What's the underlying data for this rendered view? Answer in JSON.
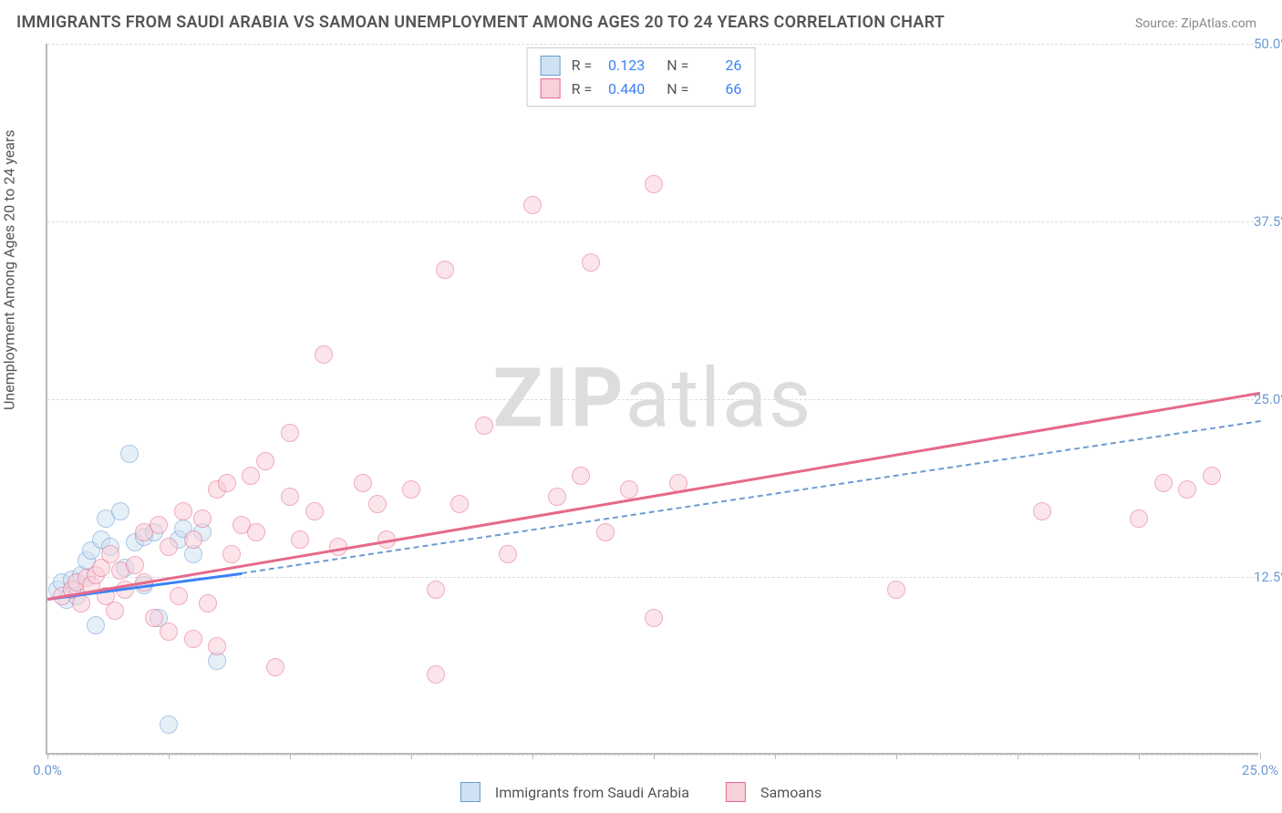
{
  "title": "IMMIGRANTS FROM SAUDI ARABIA VS SAMOAN UNEMPLOYMENT AMONG AGES 20 TO 24 YEARS CORRELATION CHART",
  "source": "Source: ZipAtlas.com",
  "y_axis_label": "Unemployment Among Ages 20 to 24 years",
  "watermark": {
    "bold": "ZIP",
    "rest": "atlas"
  },
  "chart": {
    "type": "scatter",
    "xlim": [
      0,
      25
    ],
    "ylim": [
      0,
      50
    ],
    "x_ticks": [
      0,
      25
    ],
    "x_tick_labels": [
      "0.0%",
      "25.0%"
    ],
    "y_ticks": [
      12.5,
      25.0,
      37.5,
      50.0
    ],
    "y_tick_labels": [
      "12.5%",
      "25.0%",
      "37.5%",
      "50.0%"
    ],
    "y_grid": [
      0,
      12.5,
      25.0,
      37.5,
      50.0
    ],
    "x_tick_marks": [
      0,
      2.5,
      5.0,
      7.5,
      10.0,
      12.5,
      15.0,
      17.5,
      20.0,
      22.5,
      25.0
    ],
    "background_color": "#ffffff",
    "grid_color": "#dddddd",
    "axis_color": "#bbbbbb",
    "marker_radius": 10,
    "marker_stroke_width": 1.5,
    "series": [
      {
        "name": "Immigrants from Saudi Arabia",
        "fill": "#cfe2f3",
        "stroke": "#6b9bd1",
        "fill_opacity": 0.55,
        "R": "0.123",
        "N": "26",
        "points": [
          [
            0.2,
            11.5
          ],
          [
            0.3,
            12.0
          ],
          [
            0.4,
            10.8
          ],
          [
            0.5,
            12.2
          ],
          [
            0.6,
            11.0
          ],
          [
            0.7,
            12.5
          ],
          [
            0.8,
            13.5
          ],
          [
            0.9,
            14.2
          ],
          [
            1.0,
            9.0
          ],
          [
            1.1,
            15.0
          ],
          [
            1.2,
            16.5
          ],
          [
            1.3,
            14.5
          ],
          [
            1.5,
            17.0
          ],
          [
            1.6,
            13.0
          ],
          [
            1.7,
            21.0
          ],
          [
            1.8,
            14.8
          ],
          [
            2.0,
            15.2
          ],
          [
            2.2,
            15.5
          ],
          [
            2.3,
            9.5
          ],
          [
            2.5,
            2.0
          ],
          [
            2.7,
            15.0
          ],
          [
            2.8,
            15.8
          ],
          [
            3.0,
            14.0
          ],
          [
            3.2,
            15.5
          ],
          [
            3.5,
            6.5
          ],
          [
            2.0,
            11.8
          ]
        ],
        "trend": {
          "x1": 0,
          "y1": 11.0,
          "x2": 4.0,
          "y2": 12.8,
          "dashed": false,
          "color": "#3b82f6",
          "width": 3
        },
        "trend_ext": {
          "x1": 4.0,
          "y1": 12.8,
          "x2": 25.0,
          "y2": 23.5,
          "dashed": true,
          "color": "#6b9bd1",
          "width": 2
        }
      },
      {
        "name": "Samoans",
        "fill": "#f8d0da",
        "stroke": "#e6698a",
        "fill_opacity": 0.55,
        "R": "0.440",
        "N": "66",
        "points": [
          [
            0.3,
            11.0
          ],
          [
            0.5,
            11.5
          ],
          [
            0.6,
            12.0
          ],
          [
            0.7,
            10.5
          ],
          [
            0.8,
            12.3
          ],
          [
            0.9,
            11.8
          ],
          [
            1.0,
            12.5
          ],
          [
            1.1,
            13.0
          ],
          [
            1.2,
            11.0
          ],
          [
            1.3,
            14.0
          ],
          [
            1.4,
            10.0
          ],
          [
            1.5,
            12.8
          ],
          [
            1.6,
            11.5
          ],
          [
            1.8,
            13.2
          ],
          [
            2.0,
            12.0
          ],
          [
            2.0,
            15.5
          ],
          [
            2.2,
            9.5
          ],
          [
            2.3,
            16.0
          ],
          [
            2.5,
            8.5
          ],
          [
            2.5,
            14.5
          ],
          [
            2.7,
            11.0
          ],
          [
            2.8,
            17.0
          ],
          [
            3.0,
            8.0
          ],
          [
            3.0,
            15.0
          ],
          [
            3.2,
            16.5
          ],
          [
            3.3,
            10.5
          ],
          [
            3.5,
            18.5
          ],
          [
            3.5,
            7.5
          ],
          [
            3.7,
            19.0
          ],
          [
            3.8,
            14.0
          ],
          [
            4.0,
            16.0
          ],
          [
            4.2,
            19.5
          ],
          [
            4.3,
            15.5
          ],
          [
            4.5,
            20.5
          ],
          [
            4.7,
            6.0
          ],
          [
            5.0,
            18.0
          ],
          [
            5.0,
            22.5
          ],
          [
            5.2,
            15.0
          ],
          [
            5.5,
            17.0
          ],
          [
            5.7,
            28.0
          ],
          [
            6.0,
            14.5
          ],
          [
            6.5,
            19.0
          ],
          [
            6.8,
            17.5
          ],
          [
            7.0,
            15.0
          ],
          [
            7.5,
            18.5
          ],
          [
            8.0,
            5.5
          ],
          [
            8.0,
            11.5
          ],
          [
            8.2,
            34.0
          ],
          [
            8.5,
            17.5
          ],
          [
            9.0,
            23.0
          ],
          [
            9.5,
            14.0
          ],
          [
            10.0,
            38.5
          ],
          [
            10.5,
            18.0
          ],
          [
            11.0,
            19.5
          ],
          [
            11.2,
            34.5
          ],
          [
            11.5,
            15.5
          ],
          [
            12.0,
            18.5
          ],
          [
            12.5,
            9.5
          ],
          [
            12.5,
            40.0
          ],
          [
            13.0,
            19.0
          ],
          [
            17.5,
            11.5
          ],
          [
            20.5,
            17.0
          ],
          [
            22.5,
            16.5
          ],
          [
            23.0,
            19.0
          ],
          [
            23.5,
            18.5
          ],
          [
            24.0,
            19.5
          ]
        ],
        "trend": {
          "x1": 0,
          "y1": 11.0,
          "x2": 25.0,
          "y2": 25.5,
          "dashed": false,
          "color": "#e6698a",
          "width": 3
        }
      }
    ]
  },
  "legend_top": {
    "r_label": "R =",
    "n_label": "N ="
  },
  "legend_bottom_labels": [
    "Immigrants from Saudi Arabia",
    "Samoans"
  ]
}
